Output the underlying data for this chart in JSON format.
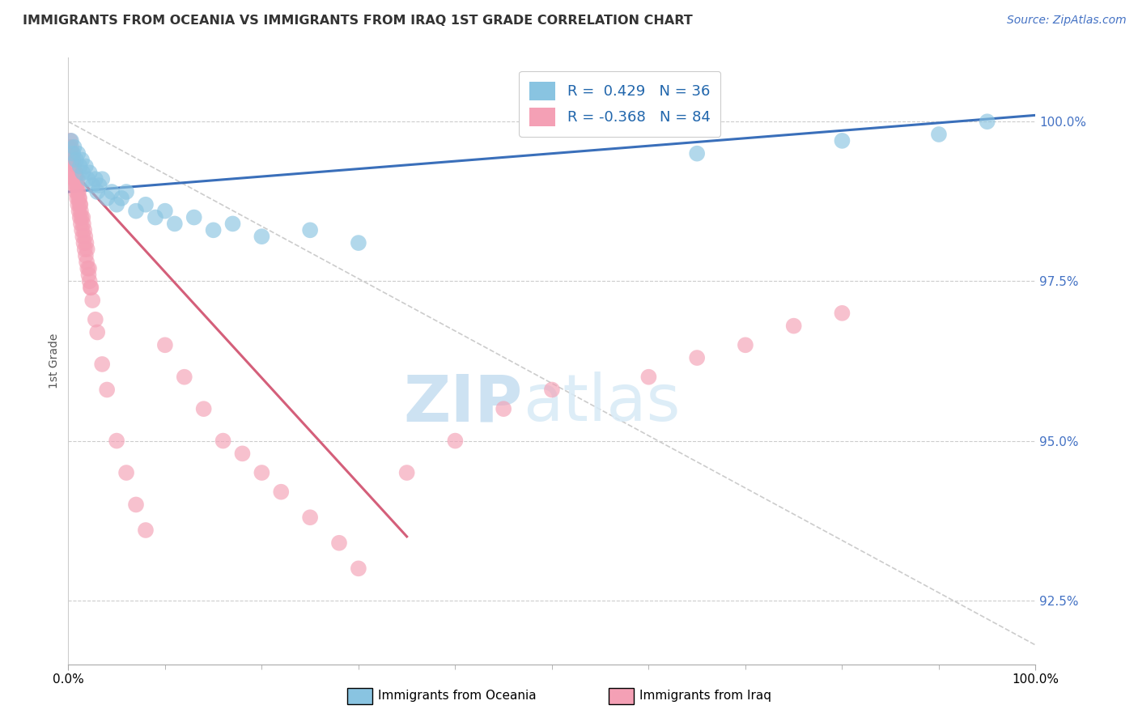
{
  "title": "IMMIGRANTS FROM OCEANIA VS IMMIGRANTS FROM IRAQ 1ST GRADE CORRELATION CHART",
  "source_text": "Source: ZipAtlas.com",
  "ylabel": "1st Grade",
  "xmin": 0.0,
  "xmax": 100.0,
  "ymin": 91.5,
  "ymax": 101.0,
  "yticks": [
    92.5,
    95.0,
    97.5,
    100.0
  ],
  "xticks": [
    0.0,
    100.0
  ],
  "xtick_labels": [
    "0.0%",
    "100.0%"
  ],
  "ytick_labels": [
    "92.5%",
    "95.0%",
    "97.5%",
    "100.0%"
  ],
  "legend_labels": [
    "Immigrants from Oceania",
    "Immigrants from Iraq"
  ],
  "legend_r_blue": "R =  0.429",
  "legend_n_blue": "N = 36",
  "legend_r_pink": "R = -0.368",
  "legend_n_pink": "N = 84",
  "color_blue": "#89c4e1",
  "color_pink": "#f4a0b5",
  "color_blue_line": "#3a6fba",
  "color_pink_line": "#d45f7a",
  "color_diag": "#cccccc",
  "watermark_zip": "ZIP",
  "watermark_atlas": "atlas",
  "blue_points_x": [
    0.3,
    0.5,
    0.6,
    0.8,
    1.0,
    1.2,
    1.4,
    1.5,
    1.8,
    2.0,
    2.2,
    2.5,
    2.8,
    3.0,
    3.2,
    3.5,
    4.0,
    4.5,
    5.0,
    5.5,
    6.0,
    7.0,
    8.0,
    9.0,
    10.0,
    11.0,
    13.0,
    15.0,
    17.0,
    20.0,
    25.0,
    30.0,
    65.0,
    80.0,
    90.0,
    95.0
  ],
  "blue_points_y": [
    99.7,
    99.5,
    99.6,
    99.4,
    99.5,
    99.3,
    99.4,
    99.2,
    99.3,
    99.1,
    99.2,
    99.0,
    99.1,
    98.9,
    99.0,
    99.1,
    98.8,
    98.9,
    98.7,
    98.8,
    98.9,
    98.6,
    98.7,
    98.5,
    98.6,
    98.4,
    98.5,
    98.3,
    98.4,
    98.2,
    98.3,
    98.1,
    99.5,
    99.7,
    99.8,
    100.0
  ],
  "pink_points_x": [
    0.1,
    0.2,
    0.2,
    0.3,
    0.3,
    0.4,
    0.4,
    0.5,
    0.5,
    0.6,
    0.6,
    0.7,
    0.7,
    0.8,
    0.8,
    0.9,
    0.9,
    1.0,
    1.0,
    1.1,
    1.1,
    1.2,
    1.2,
    1.3,
    1.3,
    1.4,
    1.5,
    1.5,
    1.6,
    1.7,
    1.8,
    1.9,
    2.0,
    2.1,
    2.2,
    2.3,
    2.5,
    2.8,
    3.0,
    3.5,
    4.0,
    5.0,
    6.0,
    7.0,
    8.0,
    10.0,
    12.0,
    14.0,
    16.0,
    18.0,
    20.0,
    22.0,
    25.0,
    28.0,
    30.0,
    35.0,
    40.0,
    45.0,
    50.0,
    60.0,
    65.0,
    70.0,
    75.0,
    80.0,
    0.15,
    0.25,
    0.35,
    0.45,
    0.55,
    0.65,
    0.75,
    0.85,
    0.95,
    1.05,
    1.15,
    1.25,
    1.35,
    1.55,
    1.65,
    1.75,
    1.85,
    1.95,
    2.15,
    2.35
  ],
  "pink_points_y": [
    99.6,
    99.5,
    99.7,
    99.4,
    99.6,
    99.3,
    99.5,
    99.2,
    99.4,
    99.1,
    99.3,
    99.0,
    99.2,
    98.9,
    99.1,
    98.8,
    99.0,
    98.7,
    98.9,
    98.6,
    98.8,
    98.5,
    98.7,
    98.4,
    98.6,
    98.3,
    98.2,
    98.5,
    98.1,
    98.0,
    97.9,
    97.8,
    97.7,
    97.6,
    97.5,
    97.4,
    97.2,
    96.9,
    96.7,
    96.2,
    95.8,
    95.0,
    94.5,
    94.0,
    93.6,
    96.5,
    96.0,
    95.5,
    95.0,
    94.8,
    94.5,
    94.2,
    93.8,
    93.4,
    93.0,
    94.5,
    95.0,
    95.5,
    95.8,
    96.0,
    96.3,
    96.5,
    96.8,
    97.0,
    99.5,
    99.3,
    99.4,
    99.2,
    99.3,
    99.1,
    99.2,
    99.0,
    99.1,
    98.9,
    98.8,
    98.7,
    98.5,
    98.4,
    98.3,
    98.2,
    98.1,
    98.0,
    97.7,
    97.4
  ],
  "blue_line_x": [
    0.0,
    100.0
  ],
  "blue_line_y": [
    98.9,
    100.1
  ],
  "pink_line_x": [
    0.0,
    35.0
  ],
  "pink_line_y": [
    99.3,
    93.5
  ],
  "diag_line_x": [
    0.0,
    100.0
  ],
  "diag_line_y": [
    100.0,
    91.8
  ]
}
